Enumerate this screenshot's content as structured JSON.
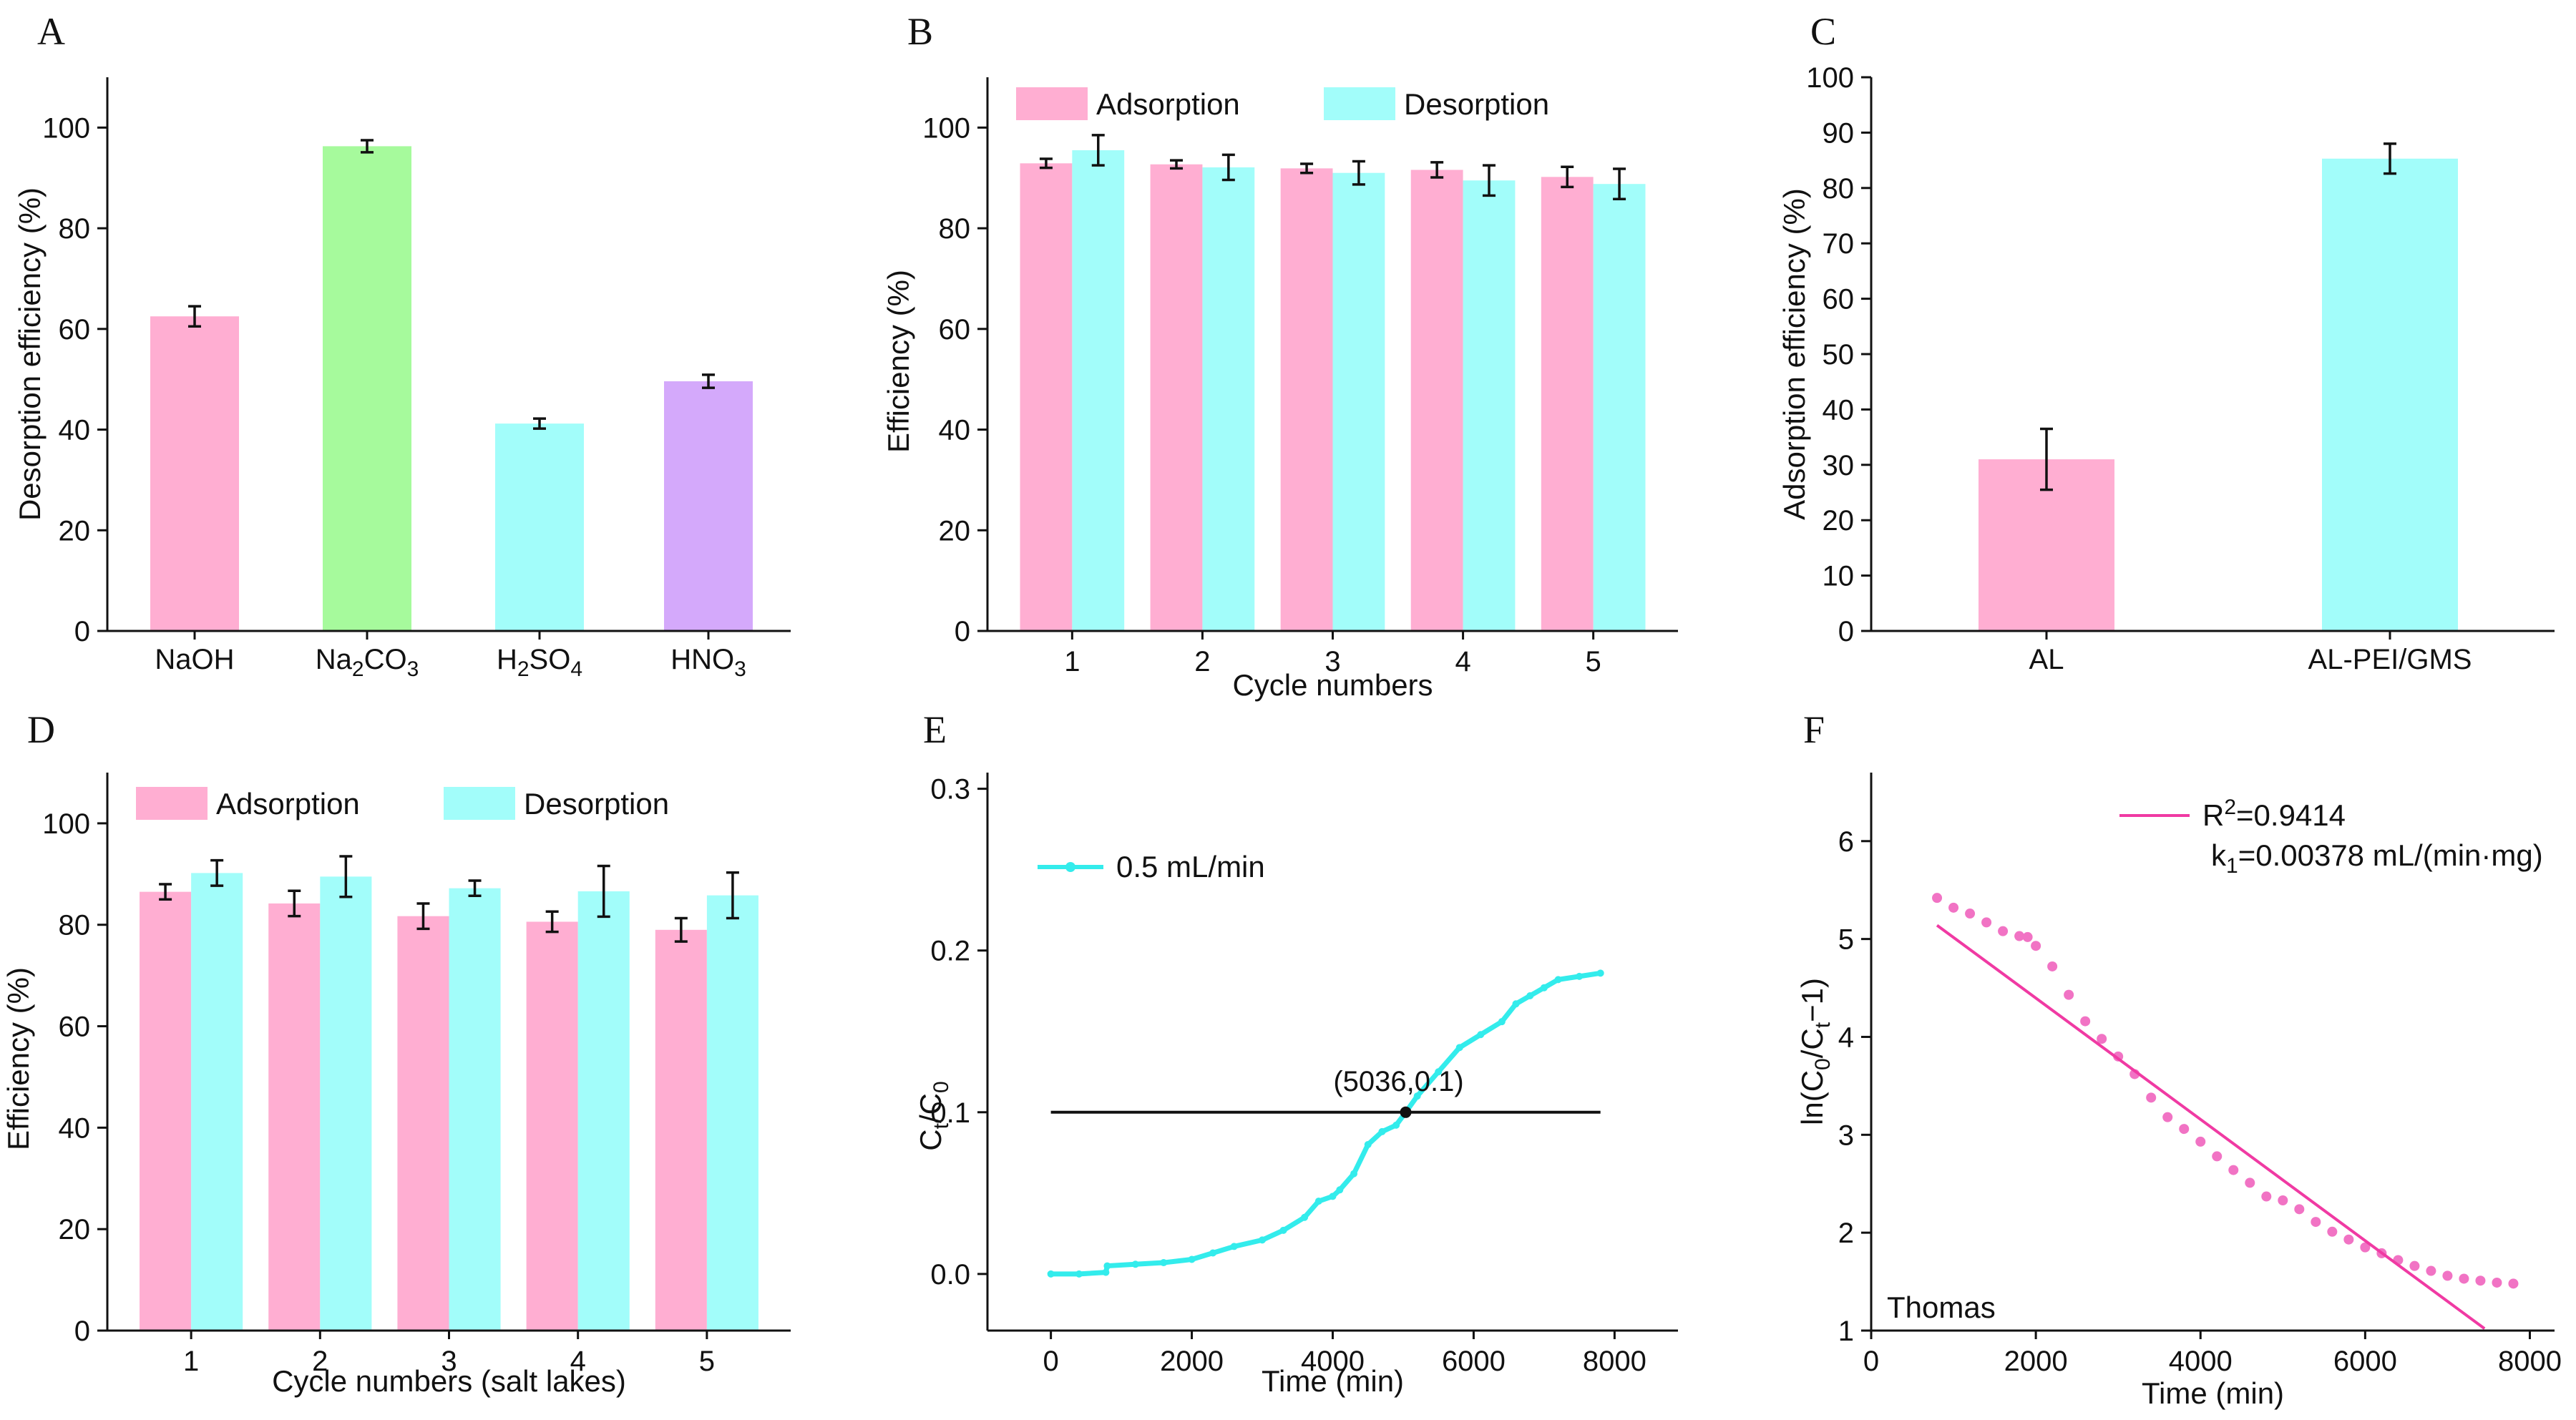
{
  "colors": {
    "pink": "#ffaed2",
    "green": "#a6fa9c",
    "cyan": "#a2fdfa",
    "purple": "#d4a9fb",
    "cyan_line": "#33ecec",
    "pink_dot": "#f173c4",
    "pink_line": "#f03aa3",
    "black": "#111111"
  },
  "chart_data": [
    {
      "panel": "A",
      "type": "bar",
      "ylabel": "Desorption efficiency (%)",
      "xlabel": "",
      "ylim": [
        0,
        110
      ],
      "yticks": [
        0,
        20,
        40,
        60,
        80,
        100
      ],
      "categories": [
        "NaOH",
        "Na2CO3",
        "H2SO4",
        "HNO3"
      ],
      "category_labels": [
        {
          "main": "NaOH",
          "parts": [
            [
              "NaOH",
              ""
            ]
          ]
        },
        {
          "main": "Na2CO3",
          "parts": [
            [
              "Na",
              ""
            ],
            [
              "2",
              "sub"
            ],
            [
              "CO",
              ""
            ],
            [
              "3",
              "sub"
            ]
          ]
        },
        {
          "main": "H2SO4",
          "parts": [
            [
              "H",
              ""
            ],
            [
              "2",
              "sub"
            ],
            [
              "SO",
              ""
            ],
            [
              "4",
              "sub"
            ]
          ]
        },
        {
          "main": "HNO3",
          "parts": [
            [
              "HNO",
              ""
            ],
            [
              "3",
              "sub"
            ]
          ]
        }
      ],
      "values": [
        62.5,
        96.3,
        41.2,
        49.6
      ],
      "errors": [
        2.0,
        1.2,
        1.0,
        1.3
      ],
      "bar_colors": [
        "pink",
        "green",
        "cyan",
        "purple"
      ]
    },
    {
      "panel": "B",
      "type": "bar",
      "xlabel": "Cycle numbers",
      "ylabel": "Efficiency (%)",
      "ylim": [
        0,
        110
      ],
      "yticks": [
        0,
        20,
        40,
        60,
        80,
        100
      ],
      "categories": [
        "1",
        "2",
        "3",
        "4",
        "5"
      ],
      "series": [
        {
          "name": "Adsorption",
          "color": "pink",
          "values": [
            92.9,
            92.7,
            91.9,
            91.6,
            90.2
          ],
          "errors": [
            0.9,
            0.8,
            0.9,
            1.5,
            2.0
          ]
        },
        {
          "name": "Desorption",
          "color": "cyan",
          "values": [
            95.5,
            92.1,
            91.0,
            89.5,
            88.8
          ],
          "errors": [
            3.0,
            2.5,
            2.3,
            3.0,
            3.0
          ]
        }
      ]
    },
    {
      "panel": "C",
      "type": "bar",
      "xlabel": "",
      "ylabel": "Adsorption efficiency (%)",
      "ylim": [
        0,
        100
      ],
      "yticks": [
        0,
        10,
        20,
        30,
        40,
        50,
        60,
        70,
        80,
        90,
        100
      ],
      "categories": [
        "AL",
        "AL-PEI/GMS"
      ],
      "values": [
        31.0,
        85.3
      ],
      "errors": [
        5.5,
        2.7
      ],
      "bar_colors": [
        "pink",
        "cyan"
      ]
    },
    {
      "panel": "D",
      "type": "bar",
      "xlabel": "Cycle numbers (salt lakes)",
      "ylabel": "Efficiency (%)",
      "ylim": [
        0,
        110
      ],
      "yticks": [
        0,
        20,
        40,
        60,
        80,
        100
      ],
      "categories": [
        "1",
        "2",
        "3",
        "4",
        "5"
      ],
      "series": [
        {
          "name": "Adsorption",
          "color": "pink",
          "values": [
            86.5,
            84.2,
            81.7,
            80.6,
            79.0
          ],
          "errors": [
            1.5,
            2.5,
            2.5,
            2.0,
            2.3
          ]
        },
        {
          "name": "Desorption",
          "color": "cyan",
          "values": [
            90.2,
            89.5,
            87.2,
            86.6,
            85.8
          ],
          "errors": [
            2.5,
            4.0,
            1.5,
            5.0,
            4.5
          ]
        }
      ]
    },
    {
      "panel": "E",
      "type": "line",
      "xlabel": "Time (min)",
      "ylabel": "Ct/C0",
      "xlim": [
        -900,
        8900
      ],
      "ylim": [
        -0.035,
        0.31
      ],
      "xticks": [
        0,
        2000,
        4000,
        6000,
        8000
      ],
      "yticks": [
        0.0,
        0.1,
        0.2,
        0.3
      ],
      "ytick_labels": [
        "0.0",
        "0.1",
        "0.2",
        "0.3"
      ],
      "series": [
        {
          "name": "0.5 mL/min",
          "color": "cyan_line",
          "x": [
            0,
            400,
            780,
            800,
            1200,
            1600,
            2000,
            2300,
            2600,
            3000,
            3300,
            3600,
            3800,
            4000,
            4100,
            4300,
            4500,
            4700,
            4900,
            5036,
            5200,
            5500,
            5800,
            6100,
            6400,
            6600,
            6800,
            7000,
            7200,
            7500,
            7800
          ],
          "y": [
            0.0,
            0.0,
            0.001,
            0.005,
            0.006,
            0.007,
            0.009,
            0.013,
            0.017,
            0.021,
            0.027,
            0.035,
            0.045,
            0.048,
            0.052,
            0.062,
            0.08,
            0.088,
            0.092,
            0.1,
            0.11,
            0.125,
            0.14,
            0.148,
            0.156,
            0.167,
            0.172,
            0.177,
            0.182,
            0.184,
            0.186
          ]
        }
      ],
      "hline": {
        "y": 0.1,
        "x_start": 0,
        "x_end": 7800
      },
      "annotation": {
        "text": "(5036,0.1)",
        "x": 5036,
        "y": 0.1
      }
    },
    {
      "panel": "F",
      "type": "scatter",
      "xlabel": "Time (min)",
      "ylabel": "ln(C0/Ct−1)",
      "xlim": [
        0,
        8300
      ],
      "ylim": [
        1.0,
        6.7
      ],
      "xticks": [
        0,
        2000,
        4000,
        6000,
        8000
      ],
      "yticks": [
        1,
        2,
        3,
        4,
        5,
        6
      ],
      "series": [
        {
          "name": "data",
          "color": "pink_dot",
          "x": [
            800,
            1000,
            1200,
            1400,
            1600,
            1800,
            1900,
            2000,
            2200,
            2400,
            2600,
            2800,
            3000,
            3200,
            3400,
            3600,
            3800,
            4000,
            4200,
            4400,
            4600,
            4800,
            5000,
            5200,
            5400,
            5600,
            5800,
            6000,
            6200,
            6400,
            6600,
            6800,
            7000,
            7200,
            7400,
            7600,
            7800
          ],
          "y": [
            5.42,
            5.32,
            5.26,
            5.17,
            5.08,
            5.03,
            5.02,
            4.93,
            4.72,
            4.43,
            4.16,
            3.98,
            3.8,
            3.62,
            3.38,
            3.18,
            3.06,
            2.93,
            2.78,
            2.64,
            2.51,
            2.37,
            2.33,
            2.24,
            2.11,
            2.01,
            1.93,
            1.85,
            1.79,
            1.72,
            1.66,
            1.61,
            1.56,
            1.53,
            1.51,
            1.49,
            1.48
          ]
        }
      ],
      "fit": {
        "name": "Thomas",
        "color": "pink_line",
        "x": [
          800,
          7450
        ],
        "y": [
          5.14,
          1.02
        ]
      },
      "legend": {
        "r2_prefix": "R",
        "r2_sup": "2",
        "r2_value": "=0.9414",
        "k_prefix": "k",
        "k_sub": "1",
        "k_value": "=0.00378 mL/(min·mg)"
      },
      "model_label": "Thomas"
    }
  ],
  "panel_letters": [
    "A",
    "B",
    "C",
    "D",
    "E",
    "F"
  ],
  "legend_labels": {
    "adsorption": "Adsorption",
    "desorption": "Desorption"
  },
  "e_label": {
    "y_main": "C",
    "y_sub_top": "t",
    "y_slash": "/C",
    "y_sub_bottom": "0"
  },
  "f_label": {
    "main": "ln(C",
    "sub0": "0",
    "mid": "/C",
    "subt": "t",
    "end": "−1)"
  }
}
